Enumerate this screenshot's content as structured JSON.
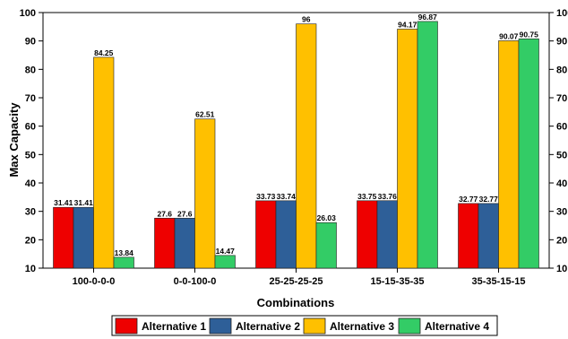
{
  "chart_data": {
    "type": "bar",
    "xlabel": "Combinations",
    "ylabel": "Max Capacity",
    "ylim": [
      10,
      100
    ],
    "yticks": [
      10,
      20,
      30,
      40,
      50,
      60,
      70,
      80,
      90,
      100
    ],
    "grid": false,
    "legend_placement": "bottom",
    "categories": [
      "100-0-0-0",
      "0-0-100-0",
      "25-25-25-25",
      "15-15-35-35",
      "35-35-15-15"
    ],
    "series": [
      {
        "name": "Alternative 1",
        "color": "#ee0000",
        "values": [
          31.41,
          27.6,
          33.73,
          33.75,
          32.77
        ],
        "labels": [
          "31.41",
          "27.6",
          "33.73",
          "33.75",
          "32.77"
        ]
      },
      {
        "name": "Alternative 2",
        "color": "#2e5f98",
        "values": [
          31.41,
          27.6,
          33.74,
          33.76,
          32.77
        ],
        "labels": [
          "31.41",
          "27.6",
          "33.74",
          "33.76",
          "32.77"
        ]
      },
      {
        "name": "Alternative 3",
        "color": "#ffc000",
        "values": [
          84.25,
          62.51,
          96,
          94.17,
          90.07
        ],
        "labels": [
          "84.25",
          "62.51",
          "96",
          "94.17",
          "90.07"
        ]
      },
      {
        "name": "Alternative 4",
        "color": "#33cc66",
        "values": [
          13.84,
          14.47,
          26.03,
          96.87,
          90.75
        ],
        "labels": [
          "13.84",
          "14.47",
          "26.03",
          "96.87",
          "90.75"
        ]
      }
    ]
  }
}
